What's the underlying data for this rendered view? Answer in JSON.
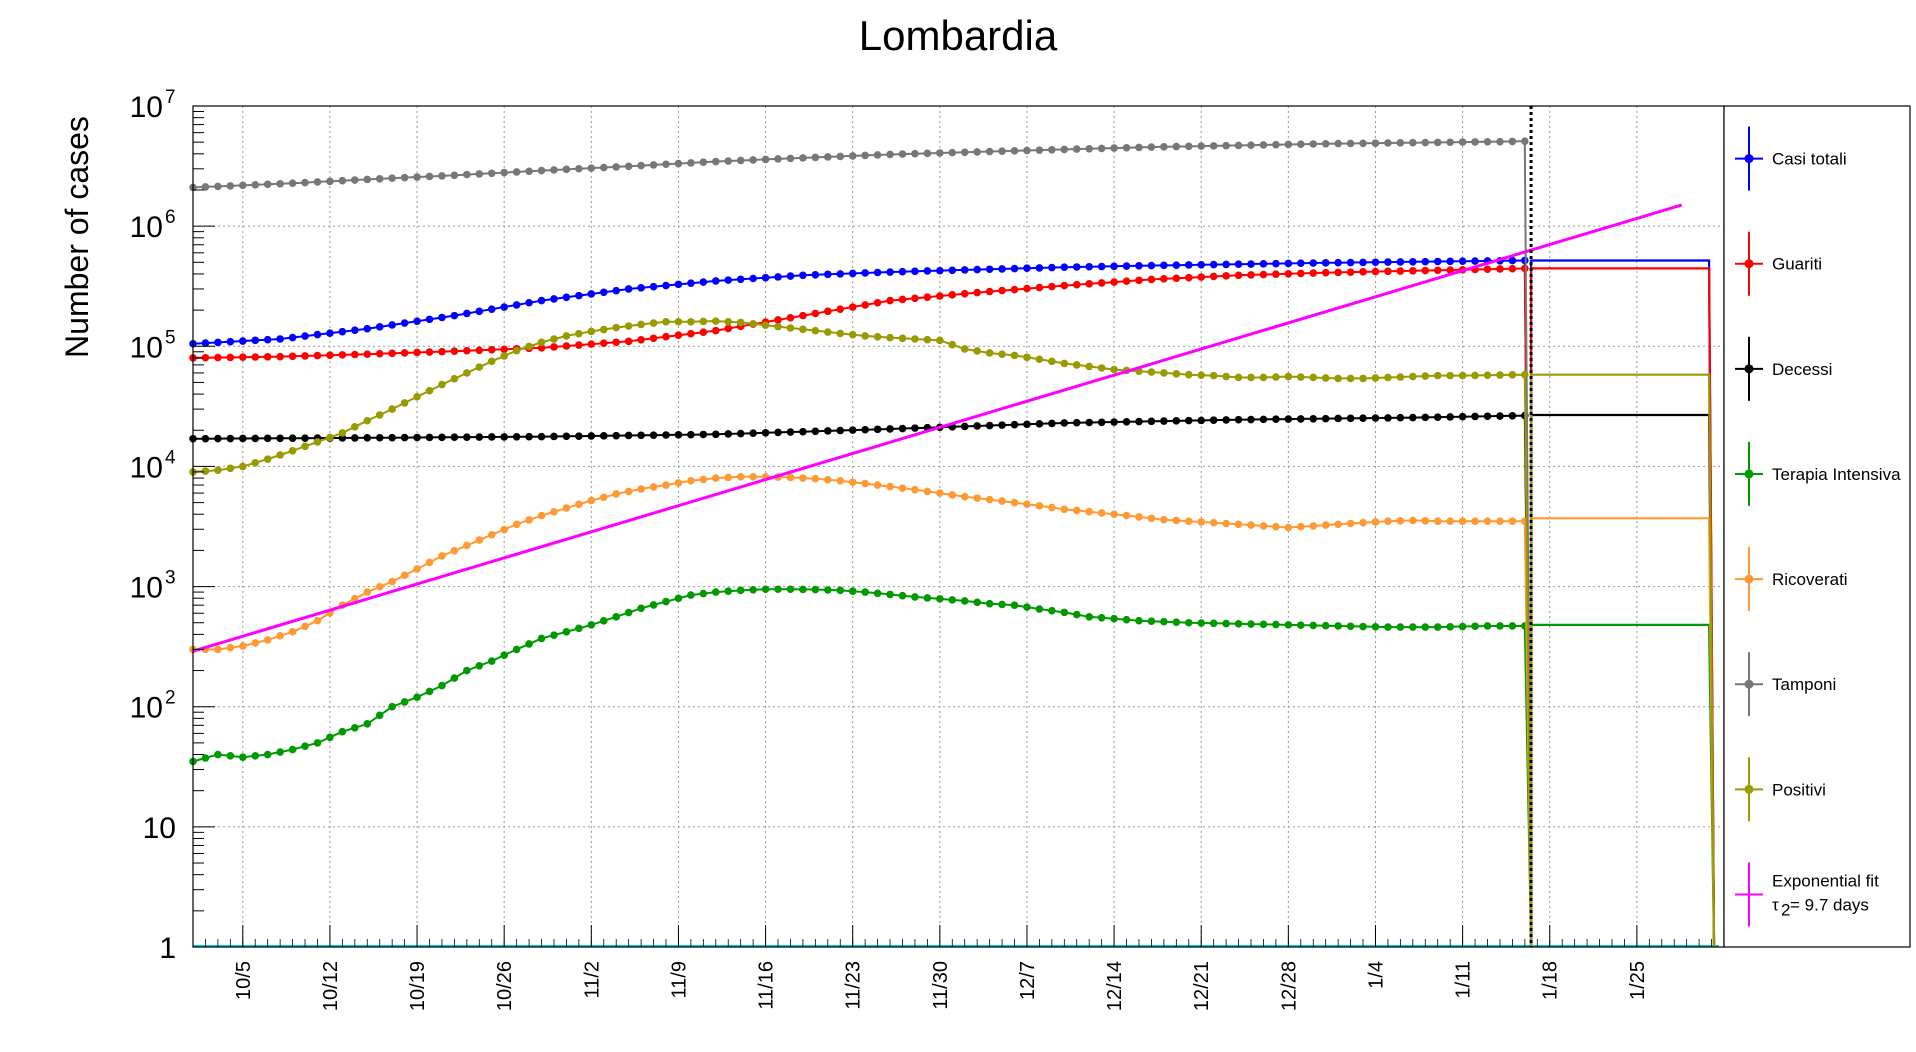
{
  "chart_data": {
    "type": "line",
    "title": "Lombardia",
    "ylabel": "Number of cases",
    "xlabel": "",
    "yscale": "log",
    "ylim": [
      1,
      10000000
    ],
    "xlim_days": [
      0,
      123
    ],
    "grid": true,
    "legend_position": "right",
    "x_tick_labels": [
      "10/5",
      "10/12",
      "10/19",
      "10/26",
      "11/2",
      "11/9",
      "11/16",
      "11/23",
      "11/30",
      "12/7",
      "12/14",
      "12/21",
      "12/28",
      "1/4",
      "1/11",
      "1/18",
      "1/25"
    ],
    "y_tick_labels": [
      {
        "base": "1",
        "exp": ""
      },
      {
        "base": "10",
        "exp": ""
      },
      {
        "base": "10",
        "exp": "2"
      },
      {
        "base": "10",
        "exp": "3"
      },
      {
        "base": "10",
        "exp": "4"
      },
      {
        "base": "10",
        "exp": "5"
      },
      {
        "base": "10",
        "exp": "6"
      },
      {
        "base": "10",
        "exp": "7"
      }
    ],
    "marker_line_day": 107.5,
    "series": [
      {
        "name": "Casi totali",
        "color": "#0000ff",
        "x": [
          0,
          7,
          14,
          21,
          28,
          35,
          42,
          49,
          56,
          63,
          70,
          77,
          84,
          91,
          98,
          105,
          107
        ],
        "y": [
          105000,
          115000,
          140000,
          180000,
          240000,
          300000,
          350000,
          390000,
          415000,
          435000,
          455000,
          470000,
          482000,
          495000,
          505000,
          515000,
          518000
        ],
        "step_value": 518000
      },
      {
        "name": "Guariti",
        "color": "#ff0000",
        "x": [
          0,
          7,
          14,
          21,
          28,
          35,
          42,
          49,
          56,
          63,
          70,
          77,
          84,
          91,
          98,
          105,
          107
        ],
        "y": [
          80000,
          82000,
          86000,
          91000,
          97000,
          110000,
          135000,
          180000,
          240000,
          280000,
          320000,
          360000,
          390000,
          410000,
          425000,
          440000,
          445000
        ],
        "step_value": 445000
      },
      {
        "name": "Decessi",
        "color": "#000000",
        "x": [
          0,
          14,
          28,
          42,
          56,
          70,
          84,
          98,
          107
        ],
        "y": [
          17000,
          17300,
          17700,
          18500,
          20500,
          23000,
          24500,
          25500,
          26500
        ],
        "step_value": 26800
      },
      {
        "name": "Terapia Intensiva",
        "color": "#009900",
        "x": [
          0,
          2,
          4,
          6,
          8,
          10,
          12,
          14,
          16,
          18,
          20,
          22,
          24,
          26,
          28,
          30,
          32,
          34,
          36,
          38,
          40,
          42,
          44,
          46,
          48,
          50,
          52,
          54,
          56,
          58,
          60,
          62,
          64,
          66,
          68,
          70,
          72,
          74,
          76,
          78,
          80,
          84,
          88,
          92,
          96,
          100,
          104,
          107
        ],
        "y": [
          35,
          40,
          38,
          40,
          44,
          50,
          62,
          72,
          100,
          120,
          150,
          200,
          240,
          300,
          370,
          420,
          480,
          560,
          660,
          750,
          850,
          900,
          930,
          950,
          950,
          945,
          930,
          900,
          860,
          820,
          790,
          760,
          720,
          700,
          650,
          610,
          560,
          540,
          520,
          510,
          500,
          490,
          480,
          470,
          460,
          460,
          470,
          470
        ],
        "step_value": 480
      },
      {
        "name": "Ricoverati",
        "color": "#ff9933",
        "x": [
          0,
          2,
          4,
          6,
          8,
          10,
          12,
          14,
          16,
          18,
          20,
          22,
          24,
          26,
          28,
          30,
          32,
          34,
          36,
          38,
          40,
          42,
          44,
          46,
          48,
          50,
          52,
          54,
          56,
          58,
          60,
          62,
          64,
          66,
          68,
          70,
          72,
          74,
          76,
          78,
          80,
          82,
          84,
          86,
          88,
          90,
          92,
          94,
          96,
          98,
          100,
          102,
          104,
          107
        ],
        "y": [
          300,
          300,
          320,
          360,
          420,
          520,
          700,
          900,
          1100,
          1400,
          1800,
          2200,
          2700,
          3300,
          3900,
          4500,
          5200,
          5900,
          6500,
          7000,
          7600,
          8000,
          8200,
          8200,
          8100,
          7900,
          7600,
          7200,
          6800,
          6400,
          6000,
          5600,
          5300,
          5000,
          4700,
          4400,
          4200,
          4000,
          3800,
          3600,
          3500,
          3400,
          3300,
          3200,
          3100,
          3200,
          3300,
          3400,
          3500,
          3550,
          3500,
          3500,
          3500,
          3500
        ],
        "step_value": 3700
      },
      {
        "name": "Tamponi",
        "color": "#777777",
        "x": [
          0,
          7,
          14,
          21,
          28,
          35,
          42,
          49,
          56,
          63,
          70,
          77,
          84,
          91,
          98,
          105,
          107
        ],
        "y": [
          2100000,
          2250000,
          2450000,
          2650000,
          2900000,
          3150000,
          3450000,
          3700000,
          3950000,
          4150000,
          4350000,
          4550000,
          4700000,
          4850000,
          4950000,
          5050000,
          5100000
        ],
        "step_value": null
      },
      {
        "name": "Positivi",
        "color": "#999900",
        "x": [
          0,
          2,
          4,
          6,
          8,
          10,
          12,
          14,
          16,
          18,
          20,
          22,
          24,
          26,
          28,
          30,
          32,
          34,
          36,
          38,
          40,
          42,
          44,
          46,
          48,
          50,
          52,
          54,
          56,
          58,
          60,
          62,
          64,
          66,
          68,
          70,
          72,
          74,
          76,
          78,
          80,
          82,
          84,
          86,
          88,
          90,
          92,
          94,
          96,
          98,
          100,
          102,
          104,
          107
        ],
        "y": [
          9000,
          9300,
          10000,
          11500,
          13500,
          16000,
          19000,
          24000,
          30000,
          38000,
          48000,
          60000,
          75000,
          92000,
          108000,
          122000,
          133000,
          143000,
          152000,
          160000,
          160000,
          162000,
          158000,
          150000,
          142000,
          135000,
          128000,
          122000,
          118000,
          115000,
          112000,
          95000,
          88000,
          84000,
          78000,
          72000,
          68000,
          64000,
          62000,
          60000,
          58000,
          57000,
          55000,
          55000,
          56000,
          55000,
          54000,
          54000,
          55000,
          56000,
          57000,
          57000,
          57500,
          58000
        ],
        "step_value": 58000
      },
      {
        "name": "Exponential fit",
        "color": "#ff00ff",
        "fit_label": "= 9.7 days",
        "fit_symbol": "τ",
        "fit_subscript": "2",
        "x": [
          0,
          119.6
        ],
        "y": [
          290,
          1500000
        ],
        "step_value": null
      }
    ]
  }
}
